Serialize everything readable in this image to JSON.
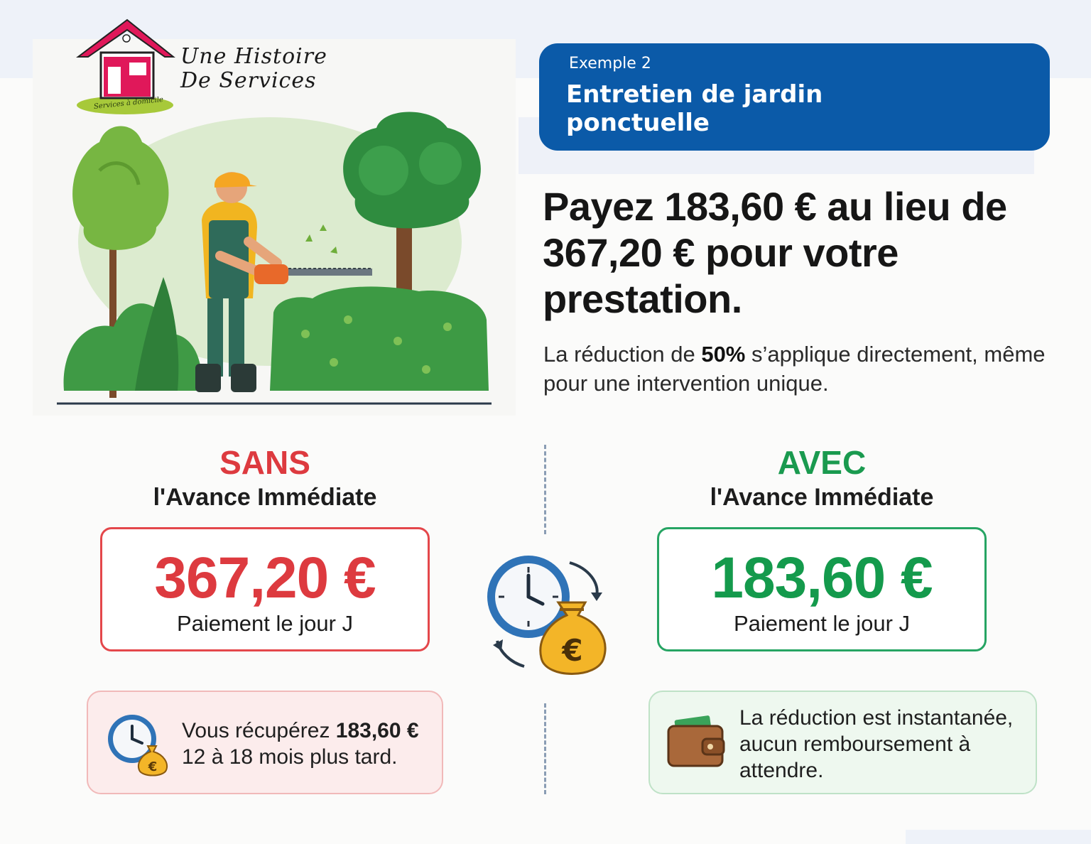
{
  "logo": {
    "line1": "Une Histoire",
    "line2": "De Services",
    "tagline": "Services à domicile"
  },
  "badge": {
    "kicker": "Exemple 2",
    "title": "Entretien de jardin ponctuelle"
  },
  "headline": "Payez 183,60 € au lieu de 367,20 € pour votre prestation.",
  "subline": {
    "before": "La réduction de ",
    "highlight": "50%",
    "after": " s’applique directement, même pour une intervention unique."
  },
  "sans": {
    "title": "SANS",
    "subtitle": "l'Avance Immédiate",
    "amount": "367,20 €",
    "amount_label": "Paiement le jour J",
    "note_before": "Vous récupérez ",
    "note_amount": "183,60 €",
    "note_after": "12 à 18 mois plus tard."
  },
  "avec": {
    "title": "AVEC",
    "subtitle": "l'Avance Immédiate",
    "amount": "183,60 €",
    "amount_label": "Paiement le jour J",
    "note": "La réduction est instantanée, aucun remboursement à attendre."
  },
  "icons": {
    "illustration": "gardener-trimming-hedge-illustration",
    "center": "clock-money-bag-euro-icon",
    "sans_note": "clock-money-bag-icon",
    "avec_note": "wallet-icon"
  },
  "colors": {
    "badge": "#0b5aa8",
    "sans": "#dd3a3f",
    "avec": "#1a9a4f"
  }
}
